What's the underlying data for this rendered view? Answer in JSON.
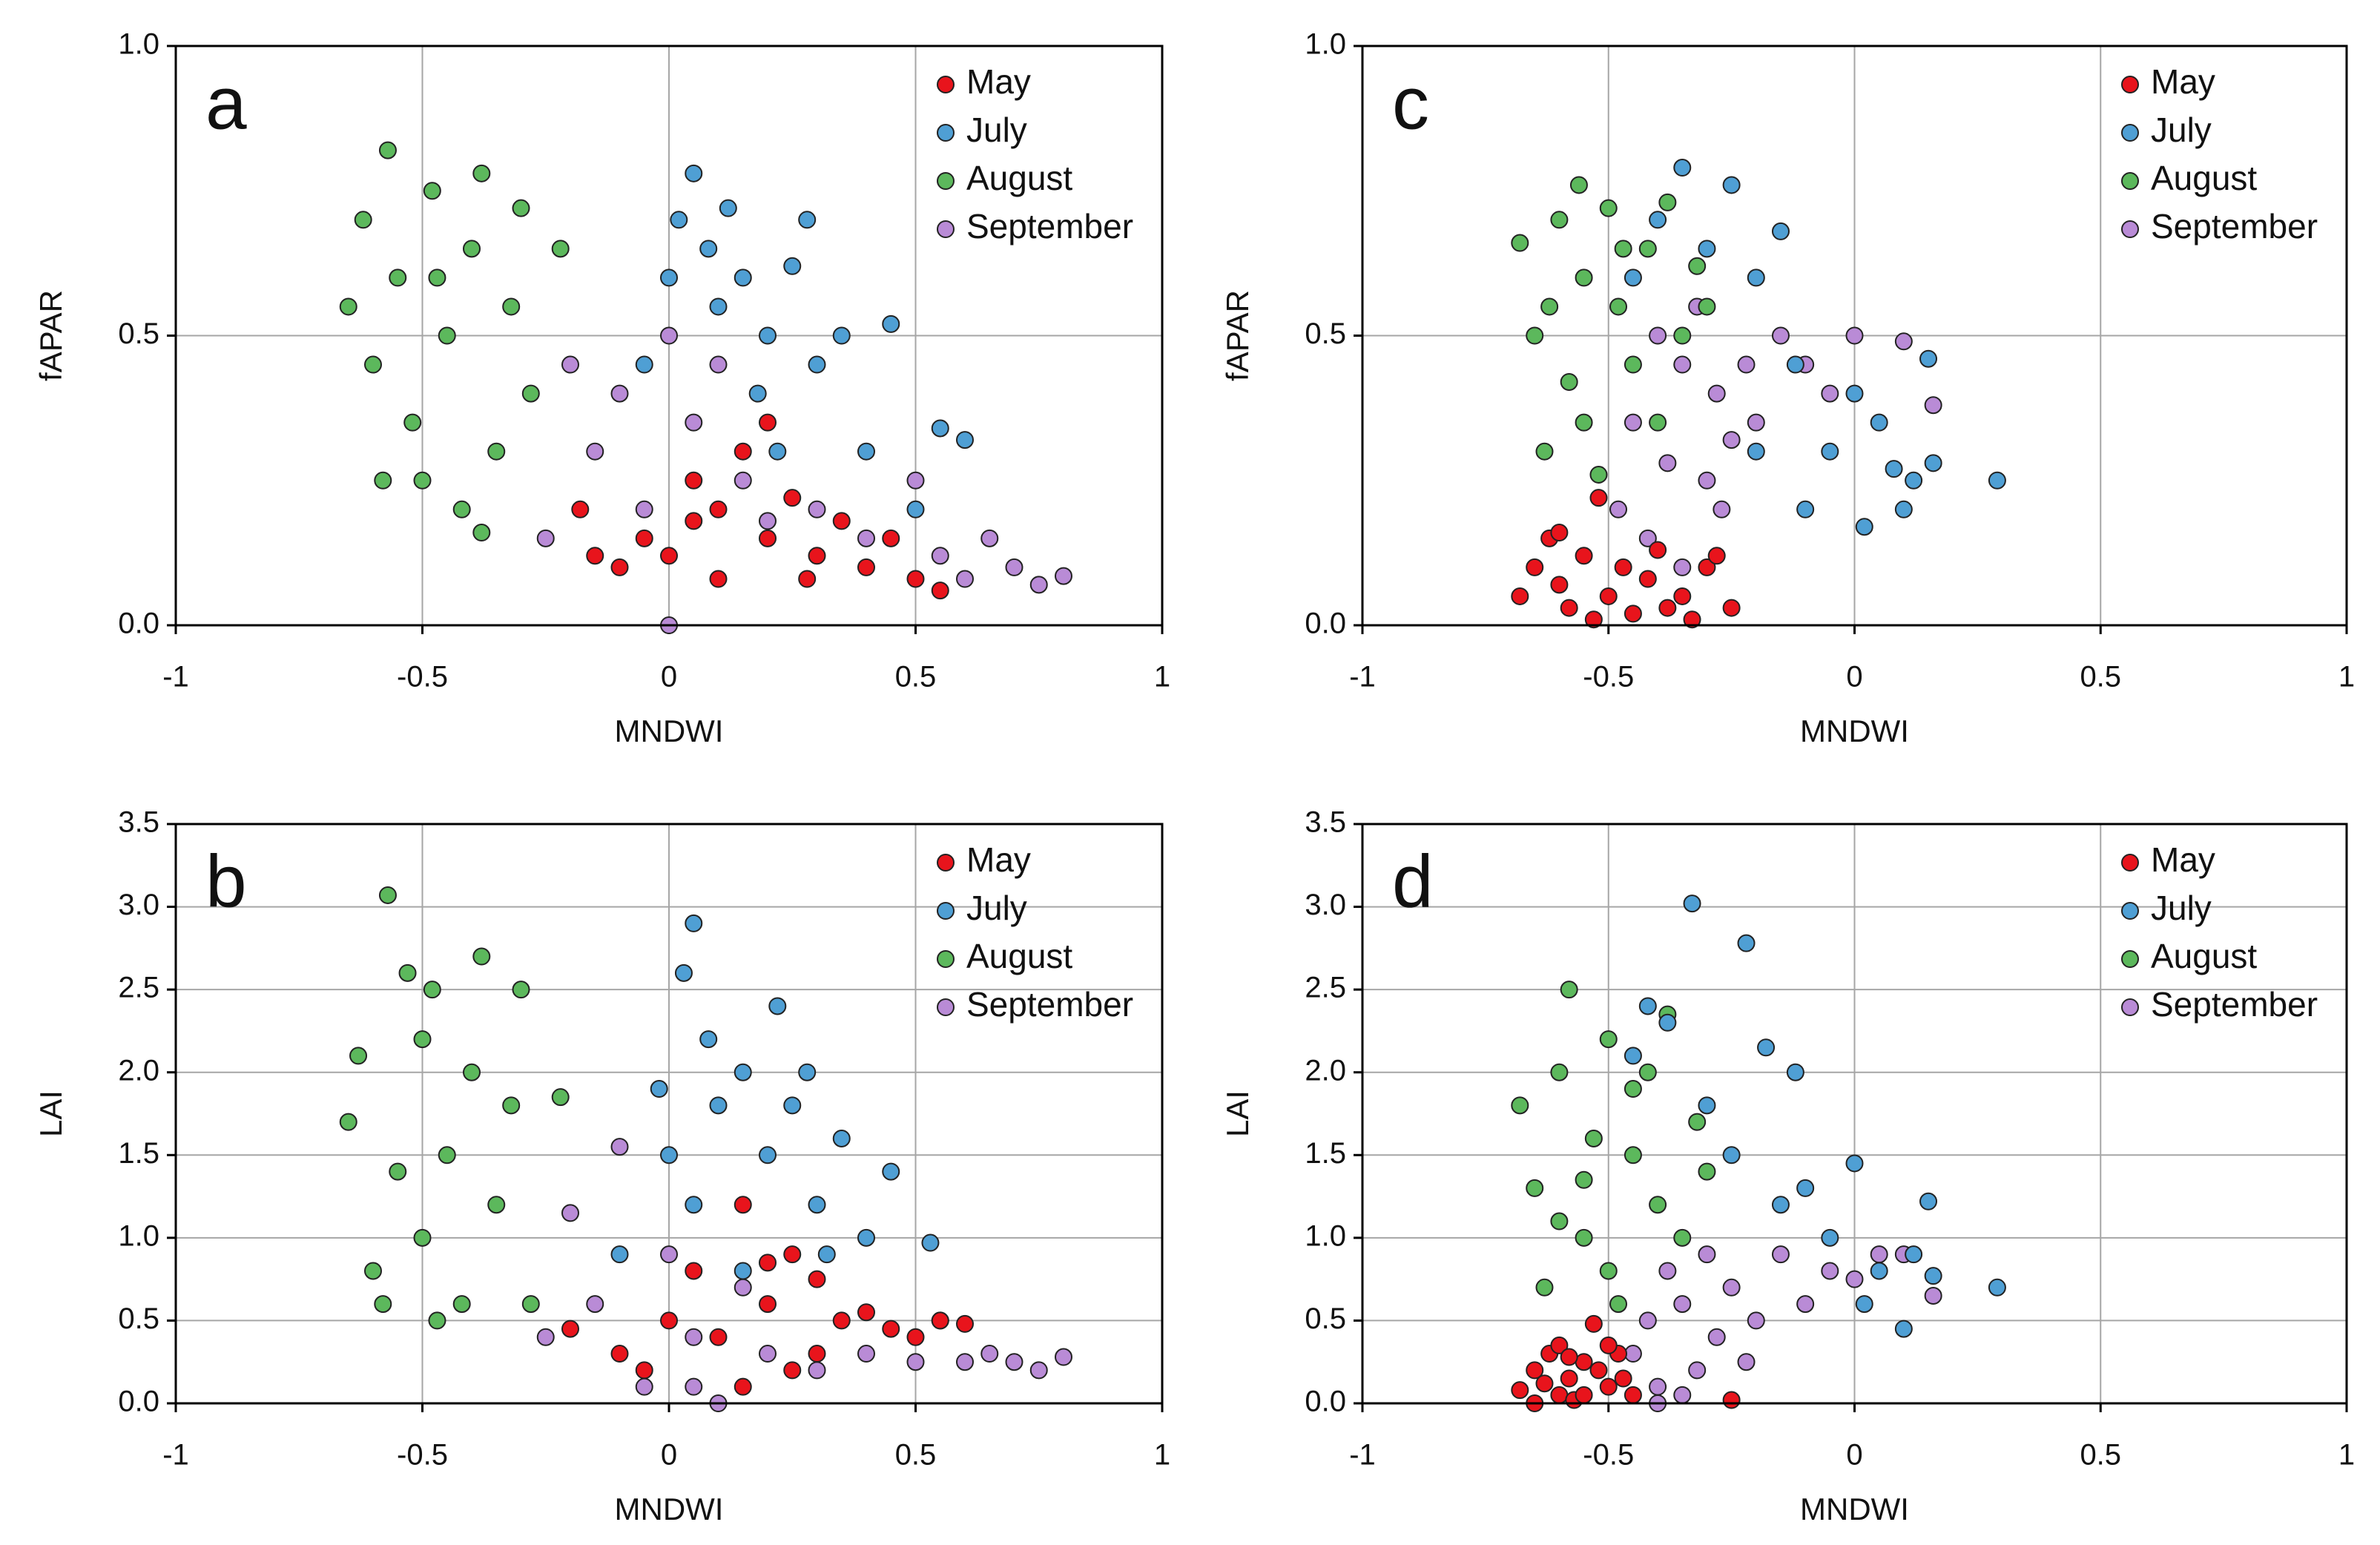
{
  "chart_data": [
    {
      "type": "scatter",
      "title": "a",
      "xlabel": "MNDWI",
      "ylabel": "fAPAR",
      "xlim": [
        -1,
        1
      ],
      "xticks": [
        -1,
        -0.5,
        0,
        0.5,
        1
      ],
      "ylim": [
        0,
        1
      ],
      "yticks": [
        {
          "value": 0,
          "label": "0.0"
        },
        {
          "value": 0.5,
          "label": "0.5"
        },
        {
          "value": 1,
          "label": "1.0"
        }
      ],
      "grid": true,
      "legend": "upper right",
      "series": [
        {
          "name": "May",
          "color": "#e8141c",
          "x": [
            -0.18,
            -0.15,
            -0.1,
            -0.05,
            0,
            0.05,
            0.1,
            0.15,
            0.2,
            0.25,
            0.3,
            0.35,
            0.4,
            0.45,
            0.5,
            0.55,
            0.1,
            0.05,
            0.2,
            0.28
          ],
          "values": [
            0.2,
            0.12,
            0.1,
            0.15,
            0.12,
            0.18,
            0.2,
            0.3,
            0.15,
            0.22,
            0.12,
            0.18,
            0.1,
            0.15,
            0.08,
            0.06,
            0.08,
            0.25,
            0.35,
            0.08
          ]
        },
        {
          "name": "July",
          "color": "#4f9fd4",
          "x": [
            -0.05,
            0,
            0.02,
            0.05,
            0.08,
            0.1,
            0.15,
            0.2,
            0.25,
            0.28,
            0.3,
            0.35,
            0.4,
            0.45,
            0.5,
            0.55,
            0.6,
            0.12,
            0.18,
            0.22
          ],
          "values": [
            0.45,
            0.6,
            0.7,
            0.78,
            0.65,
            0.55,
            0.6,
            0.5,
            0.62,
            0.7,
            0.45,
            0.5,
            0.3,
            0.52,
            0.2,
            0.34,
            0.32,
            0.72,
            0.4,
            0.3
          ]
        },
        {
          "name": "August",
          "color": "#5cb85c",
          "x": [
            -0.65,
            -0.62,
            -0.6,
            -0.57,
            -0.55,
            -0.52,
            -0.5,
            -0.48,
            -0.45,
            -0.42,
            -0.4,
            -0.38,
            -0.35,
            -0.32,
            -0.3,
            -0.28,
            -0.22,
            -0.38,
            -0.58,
            -0.47
          ],
          "values": [
            0.55,
            0.7,
            0.45,
            0.82,
            0.6,
            0.35,
            0.25,
            0.75,
            0.5,
            0.2,
            0.65,
            0.78,
            0.3,
            0.55,
            0.72,
            0.4,
            0.65,
            0.16,
            0.25,
            0.6
          ]
        },
        {
          "name": "September",
          "color": "#b98bd6",
          "x": [
            -0.25,
            -0.2,
            -0.15,
            -0.1,
            -0.05,
            0,
            0,
            0.05,
            0.1,
            0.15,
            0.2,
            0.3,
            0.4,
            0.5,
            0.55,
            0.6,
            0.65,
            0.7,
            0.75,
            0.8
          ],
          "values": [
            0.15,
            0.45,
            0.3,
            0.4,
            0.2,
            0.5,
            0,
            0.35,
            0.45,
            0.25,
            0.18,
            0.2,
            0.15,
            0.25,
            0.12,
            0.08,
            0.15,
            0.1,
            0.07,
            0.085
          ]
        }
      ]
    },
    {
      "type": "scatter",
      "title": "b",
      "xlabel": "MNDWI",
      "ylabel": "LAI",
      "xlim": [
        -1,
        1
      ],
      "xticks": [
        -1,
        -0.5,
        0,
        0.5,
        1
      ],
      "ylim": [
        0,
        3.5
      ],
      "yticks": [
        {
          "value": 0,
          "label": "0.0"
        },
        {
          "value": 0.5,
          "label": "0.5"
        },
        {
          "value": 1,
          "label": "1.0"
        },
        {
          "value": 1.5,
          "label": "1.5"
        },
        {
          "value": 2,
          "label": "2.0"
        },
        {
          "value": 2.5,
          "label": "2.5"
        },
        {
          "value": 3,
          "label": "3.0"
        },
        {
          "value": 3.5,
          "label": "3.5"
        }
      ],
      "grid": true,
      "legend": "upper right",
      "series": [
        {
          "name": "May",
          "color": "#e8141c",
          "x": [
            -0.2,
            -0.1,
            0,
            0.05,
            0.1,
            0.15,
            0.2,
            0.25,
            0.3,
            0.35,
            0.4,
            0.45,
            0.5,
            0.55,
            0.6,
            0.25,
            0.15,
            0.3,
            -0.05,
            0.2
          ],
          "values": [
            0.45,
            0.3,
            0.5,
            0.8,
            0.4,
            1.2,
            0.6,
            0.9,
            0.3,
            0.5,
            0.55,
            0.45,
            0.4,
            0.5,
            0.48,
            0.2,
            0.1,
            0.75,
            0.2,
            0.85
          ]
        },
        {
          "name": "July",
          "color": "#4f9fd4",
          "x": [
            -0.1,
            0,
            0.03,
            0.05,
            0.08,
            0.1,
            0.15,
            0.2,
            0.22,
            0.25,
            0.28,
            0.3,
            0.35,
            0.4,
            0.45,
            0.53,
            0.15,
            0.05,
            -0.02,
            0.32
          ],
          "values": [
            0.9,
            1.5,
            2.6,
            2.9,
            2.2,
            1.8,
            2.0,
            1.5,
            2.4,
            1.8,
            2.0,
            1.2,
            1.6,
            1.0,
            1.4,
            0.97,
            0.8,
            1.2,
            1.9,
            0.9
          ]
        },
        {
          "name": "August",
          "color": "#5cb85c",
          "x": [
            -0.65,
            -0.63,
            -0.6,
            -0.57,
            -0.55,
            -0.53,
            -0.5,
            -0.48,
            -0.45,
            -0.42,
            -0.4,
            -0.38,
            -0.35,
            -0.32,
            -0.3,
            -0.28,
            -0.22,
            -0.47,
            -0.58,
            -0.5
          ],
          "values": [
            1.7,
            2.1,
            0.8,
            3.07,
            1.4,
            2.6,
            1.0,
            2.5,
            1.5,
            0.6,
            2.0,
            2.7,
            1.2,
            1.8,
            2.5,
            0.6,
            1.85,
            0.5,
            0.6,
            2.2
          ]
        },
        {
          "name": "September",
          "color": "#b98bd6",
          "x": [
            -0.25,
            -0.2,
            -0.15,
            -0.1,
            -0.05,
            0,
            0.05,
            0.1,
            0.15,
            0.2,
            0.3,
            0.4,
            0.5,
            0.55,
            0.6,
            0.65,
            0.7,
            0.75,
            0.8,
            0.05
          ],
          "values": [
            0.4,
            1.15,
            0.6,
            1.55,
            0.1,
            0.9,
            0.4,
            0,
            0.7,
            0.3,
            0.2,
            0.3,
            0.25,
            0.5,
            0.25,
            0.3,
            0.25,
            0.2,
            0.28,
            0.1
          ]
        }
      ]
    },
    {
      "type": "scatter",
      "title": "c",
      "xlabel": "MNDWI",
      "ylabel": "fAPAR",
      "xlim": [
        -1,
        1
      ],
      "xticks": [
        -1,
        -0.5,
        0,
        0.5,
        1
      ],
      "ylim": [
        0,
        1
      ],
      "yticks": [
        {
          "value": 0,
          "label": "0.0"
        },
        {
          "value": 0.5,
          "label": "0.5"
        },
        {
          "value": 1,
          "label": "1.0"
        }
      ],
      "grid": true,
      "legend": "upper right",
      "series": [
        {
          "name": "May",
          "color": "#e8141c",
          "x": [
            -0.68,
            -0.65,
            -0.62,
            -0.6,
            -0.58,
            -0.55,
            -0.52,
            -0.5,
            -0.47,
            -0.45,
            -0.42,
            -0.4,
            -0.35,
            -0.33,
            -0.3,
            -0.28,
            -0.25,
            -0.53,
            -0.6,
            -0.38
          ],
          "values": [
            0.05,
            0.1,
            0.15,
            0.07,
            0.03,
            0.12,
            0.22,
            0.05,
            0.1,
            0.02,
            0.08,
            0.13,
            0.05,
            0.01,
            0.1,
            0.12,
            0.03,
            0.01,
            0.16,
            0.03
          ]
        },
        {
          "name": "July",
          "color": "#4f9fd4",
          "x": [
            -0.45,
            -0.4,
            -0.35,
            -0.3,
            -0.25,
            -0.2,
            -0.15,
            -0.12,
            -0.1,
            -0.05,
            0,
            0.02,
            0.05,
            0.08,
            0.1,
            0.12,
            0.15,
            0.16,
            0.29,
            -0.2
          ],
          "values": [
            0.6,
            0.7,
            0.79,
            0.65,
            0.76,
            0.6,
            0.68,
            0.45,
            0.2,
            0.3,
            0.4,
            0.17,
            0.35,
            0.27,
            0.2,
            0.25,
            0.46,
            0.28,
            0.25,
            0.3
          ]
        },
        {
          "name": "August",
          "color": "#5cb85c",
          "x": [
            -0.68,
            -0.65,
            -0.63,
            -0.6,
            -0.58,
            -0.56,
            -0.55,
            -0.52,
            -0.5,
            -0.48,
            -0.45,
            -0.42,
            -0.4,
            -0.38,
            -0.35,
            -0.32,
            -0.3,
            -0.55,
            -0.62,
            -0.47
          ],
          "values": [
            0.66,
            0.5,
            0.3,
            0.7,
            0.42,
            0.76,
            0.6,
            0.26,
            0.72,
            0.55,
            0.45,
            0.65,
            0.35,
            0.73,
            0.5,
            0.62,
            0.55,
            0.35,
            0.55,
            0.65
          ]
        },
        {
          "name": "September",
          "color": "#b98bd6",
          "x": [
            -0.48,
            -0.45,
            -0.42,
            -0.4,
            -0.38,
            -0.35,
            -0.32,
            -0.3,
            -0.28,
            -0.25,
            -0.22,
            -0.2,
            -0.15,
            -0.1,
            -0.05,
            0,
            0.1,
            0.16,
            -0.35,
            -0.27
          ],
          "values": [
            0.2,
            0.35,
            0.15,
            0.5,
            0.28,
            0.45,
            0.55,
            0.25,
            0.4,
            0.32,
            0.45,
            0.35,
            0.5,
            0.45,
            0.4,
            0.5,
            0.49,
            0.38,
            0.1,
            0.2
          ]
        }
      ]
    },
    {
      "type": "scatter",
      "title": "d",
      "xlabel": "MNDWI",
      "ylabel": "LAI",
      "xlim": [
        -1,
        1
      ],
      "xticks": [
        -1,
        -0.5,
        0,
        0.5,
        1
      ],
      "ylim": [
        0,
        3.5
      ],
      "yticks": [
        {
          "value": 0,
          "label": "0.0"
        },
        {
          "value": 0.5,
          "label": "0.5"
        },
        {
          "value": 1,
          "label": "1.0"
        },
        {
          "value": 1.5,
          "label": "1.5"
        },
        {
          "value": 2,
          "label": "2.0"
        },
        {
          "value": 2.5,
          "label": "2.5"
        },
        {
          "value": 3,
          "label": "3.0"
        },
        {
          "value": 3.5,
          "label": "3.5"
        }
      ],
      "grid": true,
      "legend": "upper right",
      "series": [
        {
          "name": "May",
          "color": "#e8141c",
          "x": [
            -0.68,
            -0.65,
            -0.62,
            -0.6,
            -0.58,
            -0.55,
            -0.53,
            -0.5,
            -0.48,
            -0.45,
            -0.6,
            -0.57,
            -0.52,
            -0.63,
            -0.47,
            -0.25,
            -0.55,
            -0.5,
            -0.65,
            -0.58
          ],
          "values": [
            0.08,
            0.2,
            0.3,
            0.05,
            0.15,
            0.25,
            0.48,
            0.1,
            0.3,
            0.05,
            0.35,
            0.02,
            0.2,
            0.12,
            0.15,
            0.02,
            0.05,
            0.35,
            0,
            0.28
          ]
        },
        {
          "name": "July",
          "color": "#4f9fd4",
          "x": [
            -0.45,
            -0.42,
            -0.38,
            -0.33,
            -0.3,
            -0.25,
            -0.22,
            -0.18,
            -0.15,
            -0.12,
            -0.1,
            -0.05,
            0,
            0.02,
            0.05,
            0.1,
            0.12,
            0.15,
            0.16,
            0.29
          ],
          "values": [
            2.1,
            2.4,
            2.3,
            3.02,
            1.8,
            1.5,
            2.78,
            2.15,
            1.2,
            2.0,
            1.3,
            1.0,
            1.45,
            0.6,
            0.8,
            0.45,
            0.9,
            1.22,
            0.77,
            0.7
          ]
        },
        {
          "name": "August",
          "color": "#5cb85c",
          "x": [
            -0.68,
            -0.65,
            -0.63,
            -0.6,
            -0.58,
            -0.55,
            -0.53,
            -0.5,
            -0.48,
            -0.45,
            -0.42,
            -0.4,
            -0.38,
            -0.35,
            -0.32,
            -0.3,
            -0.6,
            -0.5,
            -0.45,
            -0.55
          ],
          "values": [
            1.8,
            1.3,
            0.7,
            2.0,
            2.5,
            1.0,
            1.6,
            2.2,
            0.6,
            1.5,
            2.0,
            1.2,
            2.35,
            1.0,
            1.7,
            1.4,
            1.1,
            0.8,
            1.9,
            1.35
          ]
        },
        {
          "name": "September",
          "color": "#b98bd6",
          "x": [
            -0.45,
            -0.42,
            -0.4,
            -0.38,
            -0.35,
            -0.32,
            -0.3,
            -0.28,
            -0.25,
            -0.2,
            -0.15,
            -0.1,
            -0.05,
            0,
            0.05,
            0.1,
            0.16,
            -0.4,
            -0.35,
            -0.22
          ],
          "values": [
            0.3,
            0.5,
            0.1,
            0.8,
            0.6,
            0.2,
            0.9,
            0.4,
            0.7,
            0.5,
            0.9,
            0.6,
            0.8,
            0.75,
            0.9,
            0.9,
            0.65,
            0,
            0.05,
            0.25
          ]
        }
      ]
    }
  ]
}
